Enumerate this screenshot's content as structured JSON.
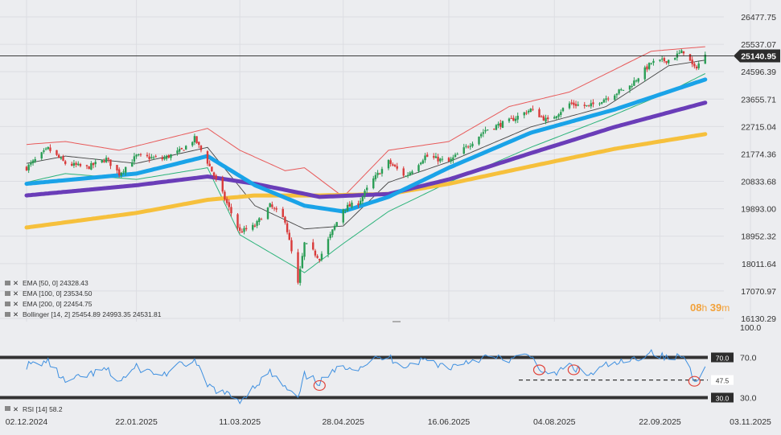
{
  "chart_data": [
    {
      "type": "candlestick",
      "instrument_price_label": "25140.95",
      "y_ticks": [
        "26477.75",
        "25537.07",
        "24596.39",
        "23655.71",
        "22715.04",
        "21774.36",
        "20833.68",
        "19893.00",
        "18952.32",
        "18011.64",
        "17070.97",
        "16130.29"
      ],
      "x_ticks": [
        "02.12.2024",
        "22.01.2025",
        "11.03.2025",
        "28.04.2025",
        "16.06.2025",
        "04.08.2025",
        "22.09.2025",
        "03.11.2025"
      ],
      "ylim": [
        16130.29,
        26477.75
      ],
      "grid": true,
      "series_anchors": {
        "close": [
          [
            "2024-12-02",
            21300
          ],
          [
            "2024-12-12",
            21950
          ],
          [
            "2024-12-20",
            21450
          ],
          [
            "2024-12-30",
            21300
          ],
          [
            "2025-01-08",
            21600
          ],
          [
            "2025-01-14",
            21100
          ],
          [
            "2025-01-22",
            21700
          ],
          [
            "2025-02-03",
            21600
          ],
          [
            "2025-02-12",
            21900
          ],
          [
            "2025-02-18",
            22300
          ],
          [
            "2025-02-24",
            21500
          ],
          [
            "2025-03-03",
            20400
          ],
          [
            "2025-03-11",
            19100
          ],
          [
            "2025-03-18",
            19300
          ],
          [
            "2025-03-25",
            20000
          ],
          [
            "2025-04-01",
            19500
          ],
          [
            "2025-04-07",
            17300
          ],
          [
            "2025-04-10",
            18700
          ],
          [
            "2025-04-17",
            18200
          ],
          [
            "2025-04-28",
            19900
          ],
          [
            "2025-05-05",
            20100
          ],
          [
            "2025-05-12",
            20900
          ],
          [
            "2025-05-19",
            21500
          ],
          [
            "2025-05-27",
            21000
          ],
          [
            "2025-06-05",
            21700
          ],
          [
            "2025-06-16",
            21500
          ],
          [
            "2025-06-24",
            22000
          ],
          [
            "2025-07-03",
            22600
          ],
          [
            "2025-07-14",
            22900
          ],
          [
            "2025-07-24",
            23300
          ],
          [
            "2025-08-01",
            22900
          ],
          [
            "2025-08-11",
            23500
          ],
          [
            "2025-08-20",
            23400
          ],
          [
            "2025-08-28",
            23700
          ],
          [
            "2025-09-08",
            24100
          ],
          [
            "2025-09-18",
            24900
          ],
          [
            "2025-09-26",
            25000
          ],
          [
            "2025-10-03",
            25300
          ],
          [
            "2025-10-08",
            24700
          ],
          [
            "2025-10-13",
            25140.95
          ]
        ],
        "ema50": [
          [
            "2024-12-02",
            20750
          ],
          [
            "2025-01-22",
            21100
          ],
          [
            "2025-02-24",
            21700
          ],
          [
            "2025-03-18",
            20700
          ],
          [
            "2025-04-10",
            20000
          ],
          [
            "2025-04-28",
            19800
          ],
          [
            "2025-05-19",
            20300
          ],
          [
            "2025-06-16",
            21300
          ],
          [
            "2025-07-24",
            22500
          ],
          [
            "2025-09-01",
            23300
          ],
          [
            "2025-10-13",
            24328.43
          ]
        ],
        "ema100": [
          [
            "2024-12-02",
            20350
          ],
          [
            "2025-01-22",
            20700
          ],
          [
            "2025-02-24",
            21000
          ],
          [
            "2025-03-18",
            20750
          ],
          [
            "2025-04-17",
            20300
          ],
          [
            "2025-05-19",
            20400
          ],
          [
            "2025-06-16",
            20900
          ],
          [
            "2025-07-24",
            21800
          ],
          [
            "2025-09-01",
            22700
          ],
          [
            "2025-10-13",
            23534.5
          ]
        ],
        "ema200": [
          [
            "2024-12-02",
            19250
          ],
          [
            "2025-01-22",
            19750
          ],
          [
            "2025-02-24",
            20200
          ],
          [
            "2025-03-18",
            20350
          ],
          [
            "2025-04-17",
            20350
          ],
          [
            "2025-05-19",
            20400
          ],
          [
            "2025-06-16",
            20750
          ],
          [
            "2025-07-24",
            21350
          ],
          [
            "2025-09-01",
            21950
          ],
          [
            "2025-10-13",
            22454.75
          ]
        ],
        "bb_upper": [
          [
            "2024-12-02",
            22100
          ],
          [
            "2024-12-20",
            22200
          ],
          [
            "2025-01-14",
            21900
          ],
          [
            "2025-02-24",
            22650
          ],
          [
            "2025-03-11",
            21900
          ],
          [
            "2025-04-01",
            21200
          ],
          [
            "2025-04-10",
            21300
          ],
          [
            "2025-04-28",
            20300
          ],
          [
            "2025-05-19",
            21900
          ],
          [
            "2025-06-16",
            22200
          ],
          [
            "2025-07-14",
            23400
          ],
          [
            "2025-08-11",
            23900
          ],
          [
            "2025-09-18",
            25300
          ],
          [
            "2025-10-13",
            25454.89
          ]
        ],
        "bb_mid": [
          [
            "2024-12-02",
            21450
          ],
          [
            "2024-12-20",
            21700
          ],
          [
            "2025-01-22",
            21450
          ],
          [
            "2025-02-24",
            22000
          ],
          [
            "2025-03-18",
            20000
          ],
          [
            "2025-04-10",
            19200
          ],
          [
            "2025-04-28",
            19300
          ],
          [
            "2025-05-19",
            20800
          ],
          [
            "2025-06-16",
            21500
          ],
          [
            "2025-07-24",
            22700
          ],
          [
            "2025-08-28",
            23400
          ],
          [
            "2025-09-26",
            24800
          ],
          [
            "2025-10-13",
            24993.35
          ]
        ],
        "bb_lower": [
          [
            "2024-12-02",
            20800
          ],
          [
            "2024-12-20",
            21100
          ],
          [
            "2025-01-22",
            20900
          ],
          [
            "2025-02-24",
            21300
          ],
          [
            "2025-03-11",
            19000
          ],
          [
            "2025-04-10",
            17700
          ],
          [
            "2025-04-28",
            18700
          ],
          [
            "2025-05-19",
            19800
          ],
          [
            "2025-06-16",
            20800
          ],
          [
            "2025-07-24",
            22000
          ],
          [
            "2025-08-28",
            23000
          ],
          [
            "2025-09-26",
            23900
          ],
          [
            "2025-10-13",
            24531.81
          ]
        ]
      },
      "legend": [
        {
          "label": "EMA [50, 0]",
          "value": "24328.43",
          "color": "#1aa3e8"
        },
        {
          "label": "EMA [100, 0]",
          "value": "23534.50",
          "color": "#6a3db8"
        },
        {
          "label": "EMA [200, 0]",
          "value": "22454.75",
          "color": "#f6c03c"
        },
        {
          "label": "Bollinger [14, 2]",
          "value": "25454.89   24993.35   24531.81",
          "color": "#e85a5a"
        }
      ],
      "timer": {
        "hours": "08",
        "h": "h",
        "minutes": "39",
        "m": "m"
      }
    },
    {
      "type": "line",
      "name": "RSI [14]",
      "value_label": "RSI [14]",
      "value": "58.2",
      "ylim": [
        0,
        100
      ],
      "y_ticks": [
        "100.0",
        "70.0",
        "30.0"
      ],
      "levels": [
        {
          "label": "70.0",
          "value": 70
        },
        {
          "label": "47.5",
          "value": 47.5
        },
        {
          "label": "30.0",
          "value": 30
        }
      ],
      "anchors": [
        [
          "2024-12-02",
          62
        ],
        [
          "2024-12-12",
          66
        ],
        [
          "2024-12-20",
          45
        ],
        [
          "2024-12-30",
          52
        ],
        [
          "2025-01-08",
          58
        ],
        [
          "2025-01-14",
          46
        ],
        [
          "2025-01-22",
          60
        ],
        [
          "2025-02-03",
          52
        ],
        [
          "2025-02-12",
          63
        ],
        [
          "2025-02-18",
          66
        ],
        [
          "2025-02-24",
          42
        ],
        [
          "2025-03-03",
          35
        ],
        [
          "2025-03-11",
          27
        ],
        [
          "2025-03-18",
          42
        ],
        [
          "2025-03-25",
          55
        ],
        [
          "2025-04-01",
          40
        ],
        [
          "2025-04-07",
          28
        ],
        [
          "2025-04-10",
          52
        ],
        [
          "2025-04-17",
          45
        ],
        [
          "2025-04-28",
          62
        ],
        [
          "2025-05-05",
          60
        ],
        [
          "2025-05-12",
          68
        ],
        [
          "2025-05-19",
          70
        ],
        [
          "2025-05-27",
          62
        ],
        [
          "2025-06-05",
          68
        ],
        [
          "2025-06-16",
          60
        ],
        [
          "2025-06-24",
          66
        ],
        [
          "2025-07-03",
          70
        ],
        [
          "2025-07-14",
          68
        ],
        [
          "2025-07-24",
          72
        ],
        [
          "2025-08-01",
          50
        ],
        [
          "2025-08-11",
          62
        ],
        [
          "2025-08-20",
          52
        ],
        [
          "2025-08-28",
          62
        ],
        [
          "2025-09-08",
          66
        ],
        [
          "2025-09-18",
          76
        ],
        [
          "2025-09-26",
          68
        ],
        [
          "2025-10-03",
          72
        ],
        [
          "2025-10-08",
          48
        ],
        [
          "2025-10-13",
          58.2
        ]
      ],
      "circled_points": [
        "2025-04-17",
        "2025-07-28",
        "2025-08-13",
        "2025-10-08"
      ]
    }
  ]
}
